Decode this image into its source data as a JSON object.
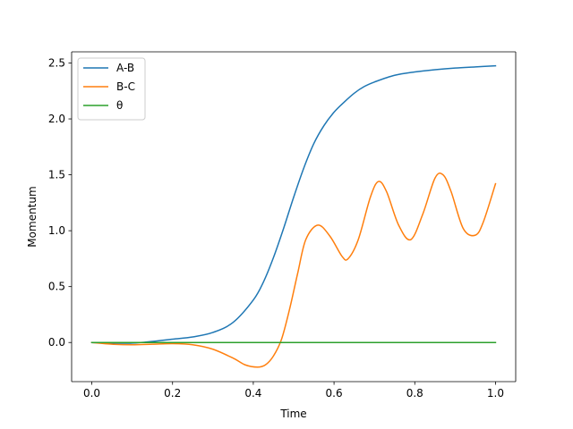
{
  "chart_data": {
    "type": "line",
    "title": "",
    "xlabel": "Time",
    "ylabel": "Momentum",
    "xlim": [
      -0.05,
      1.05
    ],
    "ylim": [
      -0.35,
      2.6
    ],
    "xticks": [
      0.0,
      0.2,
      0.4,
      0.6,
      0.8,
      1.0
    ],
    "xtick_labels": [
      "0.0",
      "0.2",
      "0.4",
      "0.6",
      "0.8",
      "1.0"
    ],
    "yticks": [
      0.0,
      0.5,
      1.0,
      1.5,
      2.0,
      2.5
    ],
    "ytick_labels": [
      "0.0",
      "0.5",
      "1.0",
      "1.5",
      "2.0",
      "2.5"
    ],
    "grid": false,
    "legend_position": "upper-left",
    "series": [
      {
        "name": "A-B",
        "color": "#1f77b4",
        "x": [
          0.0,
          0.05,
          0.1,
          0.15,
          0.2,
          0.25,
          0.3,
          0.35,
          0.4,
          0.425,
          0.45,
          0.475,
          0.5,
          0.525,
          0.55,
          0.575,
          0.6,
          0.625,
          0.65,
          0.675,
          0.7,
          0.75,
          0.8,
          0.85,
          0.9,
          0.95,
          1.0
        ],
        "values": [
          0.0,
          -0.005,
          -0.005,
          0.01,
          0.03,
          0.05,
          0.09,
          0.18,
          0.38,
          0.54,
          0.76,
          1.02,
          1.3,
          1.56,
          1.78,
          1.94,
          2.06,
          2.15,
          2.23,
          2.29,
          2.33,
          2.39,
          2.42,
          2.44,
          2.455,
          2.465,
          2.475
        ]
      },
      {
        "name": "B-C",
        "color": "#ff7f0e",
        "x": [
          0.0,
          0.05,
          0.1,
          0.15,
          0.2,
          0.25,
          0.3,
          0.35,
          0.38,
          0.41,
          0.43,
          0.45,
          0.47,
          0.49,
          0.51,
          0.53,
          0.56,
          0.59,
          0.62,
          0.635,
          0.66,
          0.69,
          0.71,
          0.73,
          0.76,
          0.79,
          0.82,
          0.85,
          0.87,
          0.89,
          0.92,
          0.95,
          0.97,
          1.0
        ],
        "values": [
          0.0,
          -0.015,
          -0.02,
          -0.015,
          -0.01,
          -0.02,
          -0.06,
          -0.14,
          -0.2,
          -0.22,
          -0.2,
          -0.12,
          0.03,
          0.3,
          0.62,
          0.92,
          1.05,
          0.95,
          0.77,
          0.75,
          0.92,
          1.3,
          1.44,
          1.35,
          1.05,
          0.92,
          1.15,
          1.47,
          1.5,
          1.35,
          1.02,
          0.96,
          1.08,
          1.42
        ]
      },
      {
        "name": "θ",
        "color": "#2ca02c",
        "x": [
          0.0,
          1.0
        ],
        "values": [
          0.0,
          0.0
        ]
      }
    ]
  }
}
